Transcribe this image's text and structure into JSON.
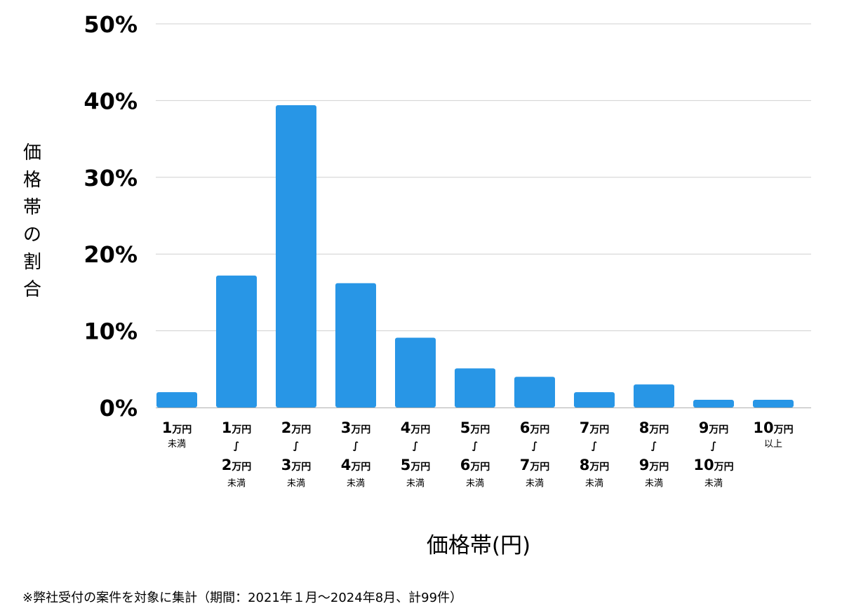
{
  "chart_data": {
    "type": "bar",
    "title": "",
    "ylabel": "価格帯の割合",
    "xlabel": "価格帯(円)",
    "ylim": [
      0,
      50
    ],
    "yticks": [
      {
        "value": 0,
        "label": "0%"
      },
      {
        "value": 10,
        "label": "10%"
      },
      {
        "value": 20,
        "label": "20%"
      },
      {
        "value": 30,
        "label": "30%"
      },
      {
        "value": 40,
        "label": "40%"
      },
      {
        "value": 50,
        "label": "50%"
      }
    ],
    "grid": true,
    "bar_color": "#2896e6",
    "categories": [
      {
        "lines": [
          {
            "num": "1",
            "unit": "万円"
          },
          {
            "small": "未満"
          }
        ]
      },
      {
        "lines": [
          {
            "num": "1",
            "unit": "万円"
          },
          {
            "tilde": "∫"
          },
          {
            "num": "2",
            "unit": "万円"
          },
          {
            "small": "未満"
          }
        ]
      },
      {
        "lines": [
          {
            "num": "2",
            "unit": "万円"
          },
          {
            "tilde": "∫"
          },
          {
            "num": "3",
            "unit": "万円"
          },
          {
            "small": "未満"
          }
        ]
      },
      {
        "lines": [
          {
            "num": "3",
            "unit": "万円"
          },
          {
            "tilde": "∫"
          },
          {
            "num": "4",
            "unit": "万円"
          },
          {
            "small": "未満"
          }
        ]
      },
      {
        "lines": [
          {
            "num": "4",
            "unit": "万円"
          },
          {
            "tilde": "∫"
          },
          {
            "num": "5",
            "unit": "万円"
          },
          {
            "small": "未満"
          }
        ]
      },
      {
        "lines": [
          {
            "num": "5",
            "unit": "万円"
          },
          {
            "tilde": "∫"
          },
          {
            "num": "6",
            "unit": "万円"
          },
          {
            "small": "未満"
          }
        ]
      },
      {
        "lines": [
          {
            "num": "6",
            "unit": "万円"
          },
          {
            "tilde": "∫"
          },
          {
            "num": "7",
            "unit": "万円"
          },
          {
            "small": "未満"
          }
        ]
      },
      {
        "lines": [
          {
            "num": "7",
            "unit": "万円"
          },
          {
            "tilde": "∫"
          },
          {
            "num": "8",
            "unit": "万円"
          },
          {
            "small": "未満"
          }
        ]
      },
      {
        "lines": [
          {
            "num": "8",
            "unit": "万円"
          },
          {
            "tilde": "∫"
          },
          {
            "num": "9",
            "unit": "万円"
          },
          {
            "small": "未満"
          }
        ]
      },
      {
        "lines": [
          {
            "num": "9",
            "unit": "万円"
          },
          {
            "tilde": "∫"
          },
          {
            "num": "10",
            "unit": "万円"
          },
          {
            "small": "未満"
          }
        ]
      },
      {
        "lines": [
          {
            "num": "10",
            "unit": "万円"
          },
          {
            "small": "以上"
          }
        ]
      }
    ],
    "values": [
      2,
      17.2,
      39.4,
      16.2,
      9.1,
      5.1,
      4.0,
      2.0,
      3.0,
      1.0,
      1.0
    ]
  },
  "footnote": "※弊社受付の案件を対象に集計（期間：2021年１月〜2024年8月、計99件）"
}
